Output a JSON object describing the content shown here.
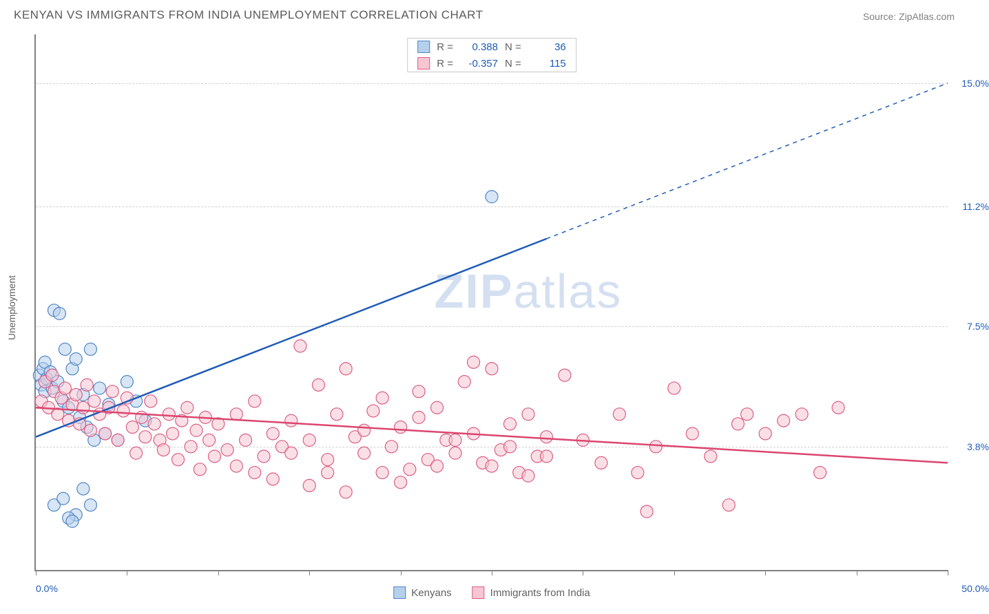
{
  "title": "KENYAN VS IMMIGRANTS FROM INDIA UNEMPLOYMENT CORRELATION CHART",
  "source": "Source: ZipAtlas.com",
  "watermark_a": "ZIP",
  "watermark_b": "atlas",
  "ylabel": "Unemployment",
  "chart": {
    "type": "scatter",
    "xlim": [
      0,
      50
    ],
    "ylim": [
      0,
      16.5
    ],
    "xtick_positions": [
      0,
      5,
      10,
      15,
      20,
      25,
      30,
      35,
      40,
      45,
      50
    ],
    "ytick_lines": [
      3.8,
      7.5,
      11.2,
      15.0
    ],
    "ytick_labels": [
      "3.8%",
      "7.5%",
      "11.2%",
      "15.0%"
    ],
    "xaxis_min_label": "0.0%",
    "xaxis_max_label": "50.0%",
    "grid_color": "#d0d0d0",
    "axis_color": "#808080",
    "background_color": "#ffffff",
    "point_radius": 9,
    "point_stroke_width": 1.2,
    "point_opacity": 0.55,
    "line_width": 2.5,
    "series": [
      {
        "name": "Kenyans",
        "fill": "#b6d0ec",
        "stroke": "#4f86c6",
        "line_color": "#1e5bb8",
        "r_label": "R =",
        "r_value": "0.388",
        "n_label": "N =",
        "n_value": "36",
        "stat_color": "#1e5bb8",
        "trend": {
          "x1": 0,
          "y1": 4.1,
          "x2": 50,
          "y2": 15.0,
          "solid_until_x": 28
        },
        "points": [
          [
            0.2,
            6.0
          ],
          [
            0.3,
            5.7
          ],
          [
            0.4,
            6.2
          ],
          [
            0.5,
            6.4
          ],
          [
            0.5,
            5.5
          ],
          [
            0.6,
            5.9
          ],
          [
            0.8,
            6.1
          ],
          [
            0.9,
            5.6
          ],
          [
            1.0,
            8.0
          ],
          [
            1.2,
            5.8
          ],
          [
            1.3,
            7.9
          ],
          [
            1.5,
            5.2
          ],
          [
            1.6,
            6.8
          ],
          [
            1.8,
            5.0
          ],
          [
            2.0,
            6.2
          ],
          [
            2.2,
            6.5
          ],
          [
            2.4,
            4.7
          ],
          [
            2.6,
            5.4
          ],
          [
            2.8,
            4.4
          ],
          [
            3.0,
            6.8
          ],
          [
            3.2,
            4.0
          ],
          [
            3.5,
            5.6
          ],
          [
            3.8,
            4.2
          ],
          [
            4.0,
            5.1
          ],
          [
            1.0,
            2.0
          ],
          [
            1.5,
            2.2
          ],
          [
            2.2,
            1.7
          ],
          [
            2.6,
            2.5
          ],
          [
            3.0,
            2.0
          ],
          [
            1.8,
            1.6
          ],
          [
            2.0,
            1.5
          ],
          [
            6.0,
            4.6
          ],
          [
            5.0,
            5.8
          ],
          [
            4.5,
            4.0
          ],
          [
            5.5,
            5.2
          ],
          [
            25.0,
            11.5
          ]
        ]
      },
      {
        "name": "Immigrants from India",
        "fill": "#f6c6d2",
        "stroke": "#db5d84",
        "line_color": "#db456e",
        "r_label": "R =",
        "r_value": "-0.357",
        "n_label": "N =",
        "n_value": "115",
        "stat_color": "#1e5bb8",
        "trend": {
          "x1": 0,
          "y1": 5.0,
          "x2": 50,
          "y2": 3.3,
          "solid_until_x": 50
        },
        "points": [
          [
            0.3,
            5.2
          ],
          [
            0.5,
            5.8
          ],
          [
            0.7,
            5.0
          ],
          [
            0.9,
            6.0
          ],
          [
            1.0,
            5.5
          ],
          [
            1.2,
            4.8
          ],
          [
            1.4,
            5.3
          ],
          [
            1.6,
            5.6
          ],
          [
            1.8,
            4.6
          ],
          [
            2.0,
            5.1
          ],
          [
            2.2,
            5.4
          ],
          [
            2.4,
            4.5
          ],
          [
            2.6,
            5.0
          ],
          [
            2.8,
            5.7
          ],
          [
            3.0,
            4.3
          ],
          [
            3.2,
            5.2
          ],
          [
            3.5,
            4.8
          ],
          [
            3.8,
            4.2
          ],
          [
            4.0,
            5.0
          ],
          [
            4.2,
            5.5
          ],
          [
            4.5,
            4.0
          ],
          [
            4.8,
            4.9
          ],
          [
            5.0,
            5.3
          ],
          [
            5.3,
            4.4
          ],
          [
            5.5,
            3.6
          ],
          [
            5.8,
            4.7
          ],
          [
            6.0,
            4.1
          ],
          [
            6.3,
            5.2
          ],
          [
            6.5,
            4.5
          ],
          [
            6.8,
            4.0
          ],
          [
            7.0,
            3.7
          ],
          [
            7.3,
            4.8
          ],
          [
            7.5,
            4.2
          ],
          [
            7.8,
            3.4
          ],
          [
            8.0,
            4.6
          ],
          [
            8.3,
            5.0
          ],
          [
            8.5,
            3.8
          ],
          [
            8.8,
            4.3
          ],
          [
            9.0,
            3.1
          ],
          [
            9.3,
            4.7
          ],
          [
            9.5,
            4.0
          ],
          [
            9.8,
            3.5
          ],
          [
            10.0,
            4.5
          ],
          [
            10.5,
            3.7
          ],
          [
            11.0,
            4.8
          ],
          [
            11.5,
            4.0
          ],
          [
            12.0,
            5.2
          ],
          [
            12.5,
            3.5
          ],
          [
            13.0,
            4.2
          ],
          [
            13.5,
            3.8
          ],
          [
            14.0,
            4.6
          ],
          [
            14.5,
            6.9
          ],
          [
            15.0,
            4.0
          ],
          [
            15.5,
            5.7
          ],
          [
            16.0,
            3.4
          ],
          [
            16.5,
            4.8
          ],
          [
            17.0,
            6.2
          ],
          [
            17.5,
            4.1
          ],
          [
            18.0,
            3.6
          ],
          [
            18.5,
            4.9
          ],
          [
            19.0,
            5.3
          ],
          [
            19.5,
            3.8
          ],
          [
            20.0,
            4.4
          ],
          [
            20.5,
            3.1
          ],
          [
            21.0,
            4.7
          ],
          [
            21.5,
            3.4
          ],
          [
            22.0,
            5.0
          ],
          [
            22.5,
            4.0
          ],
          [
            23.0,
            3.6
          ],
          [
            23.5,
            5.8
          ],
          [
            24.0,
            4.2
          ],
          [
            24.5,
            3.3
          ],
          [
            25.0,
            6.2
          ],
          [
            25.5,
            3.7
          ],
          [
            26.0,
            4.5
          ],
          [
            26.5,
            3.0
          ],
          [
            27.0,
            4.8
          ],
          [
            27.5,
            3.5
          ],
          [
            28.0,
            4.1
          ],
          [
            11.0,
            3.2
          ],
          [
            12.0,
            3.0
          ],
          [
            13.0,
            2.8
          ],
          [
            14.0,
            3.6
          ],
          [
            15.0,
            2.6
          ],
          [
            16.0,
            3.0
          ],
          [
            17.0,
            2.4
          ],
          [
            18.0,
            4.3
          ],
          [
            19.0,
            3.0
          ],
          [
            20.0,
            2.7
          ],
          [
            21.0,
            5.5
          ],
          [
            22.0,
            3.2
          ],
          [
            23.0,
            4.0
          ],
          [
            24.0,
            6.4
          ],
          [
            25.0,
            3.2
          ],
          [
            26.0,
            3.8
          ],
          [
            27.0,
            2.9
          ],
          [
            28.0,
            3.5
          ],
          [
            29.0,
            6.0
          ],
          [
            30.0,
            4.0
          ],
          [
            31.0,
            3.3
          ],
          [
            32.0,
            4.8
          ],
          [
            33.0,
            3.0
          ],
          [
            34.0,
            3.8
          ],
          [
            35.0,
            5.6
          ],
          [
            33.5,
            1.8
          ],
          [
            36.0,
            4.2
          ],
          [
            37.0,
            3.5
          ],
          [
            38.0,
            2.0
          ],
          [
            38.5,
            4.5
          ],
          [
            39.0,
            4.8
          ],
          [
            40.0,
            4.2
          ],
          [
            41.0,
            4.6
          ],
          [
            42.0,
            4.8
          ],
          [
            43.0,
            3.0
          ],
          [
            44.0,
            5.0
          ]
        ]
      }
    ]
  },
  "legend": {
    "series1": "Kenyans",
    "series2": "Immigrants from India"
  }
}
